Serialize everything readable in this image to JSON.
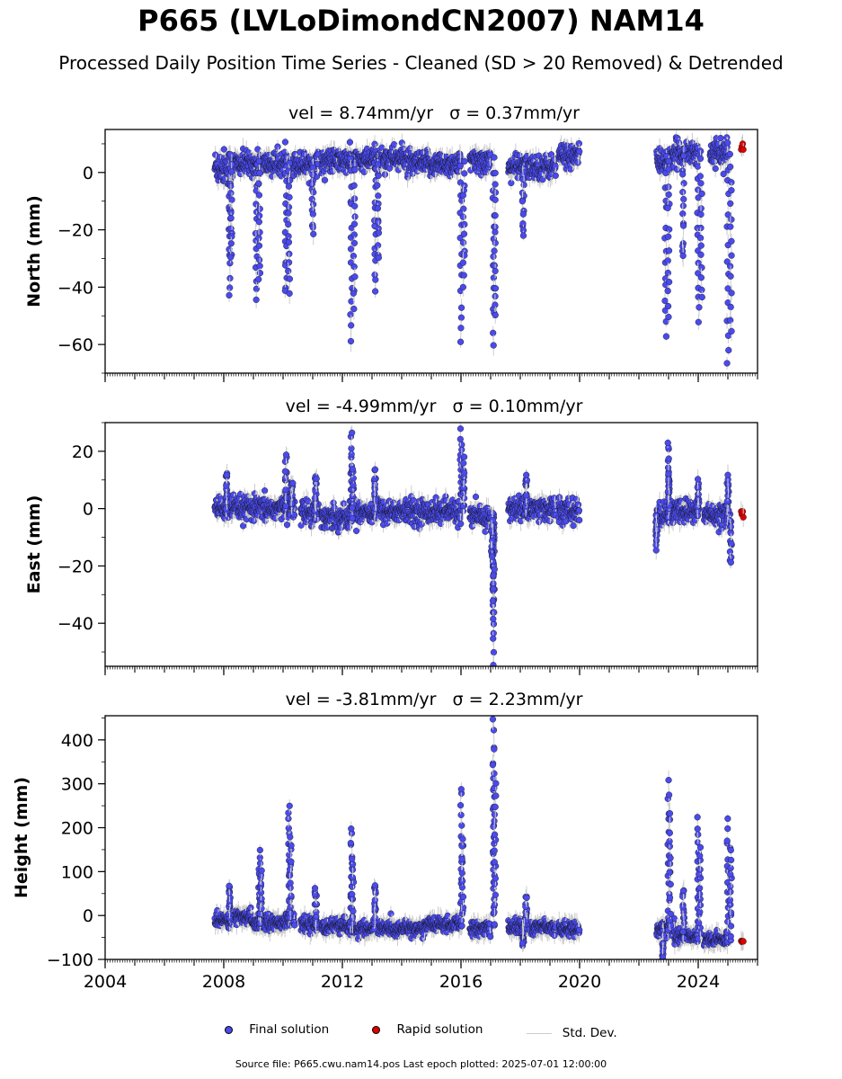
{
  "title": "P665 (LVLoDimondCN2007) NAM14",
  "subtitle": "Processed Daily Position Time Series - Cleaned (SD > 20 Removed) & Detrended",
  "legend": {
    "final": "Final solution",
    "rapid": "Rapid solution",
    "std": "Std. Dev."
  },
  "source": "Source file: P665.cwu.nam14.pos  Last epoch plotted: 2025-07-01 12:00:00",
  "colors": {
    "final": "#4a4aee",
    "rapid": "#dd0000",
    "std": "#cccccc"
  },
  "chart_data": [
    {
      "type": "scatter",
      "title": "vel = 8.74mm/yr   σ = 0.37mm/yr",
      "ylabel": "North (mm)",
      "xlim": [
        2004,
        2026
      ],
      "ylim": [
        -70,
        15
      ],
      "xticks": [
        2004,
        2008,
        2012,
        2016,
        2020,
        2024
      ],
      "yticks": [
        0,
        -20,
        -40,
        -60
      ],
      "series": [
        {
          "name": "Final solution",
          "clusters": [
            [
              2007.7,
              2008.3,
              2,
              3
            ],
            [
              2008.3,
              2009.0,
              3,
              2
            ],
            [
              2009.0,
              2010.1,
              3,
              2
            ],
            [
              2010.1,
              2010.6,
              3,
              2
            ],
            [
              2010.6,
              2011.2,
              3,
              2
            ],
            [
              2011.3,
              2013.0,
              4,
              2
            ],
            [
              2013.0,
              2014.2,
              5,
              2
            ],
            [
              2014.2,
              2016.0,
              3,
              2
            ],
            [
              2016.3,
              2017.0,
              4,
              2
            ],
            [
              2017.6,
              2019.2,
              2,
              2
            ],
            [
              2019.3,
              2020.0,
              6,
              2
            ],
            [
              2022.6,
              2023.2,
              4,
              2
            ],
            [
              2023.2,
              2024.0,
              7,
              2
            ],
            [
              2024.4,
              2025.0,
              7,
              2
            ]
          ],
          "spikes": [
            [
              2008.2,
              -42,
              0
            ],
            [
              2008.25,
              -30,
              0
            ],
            [
              2009.1,
              -44,
              0
            ],
            [
              2009.2,
              -38,
              0
            ],
            [
              2010.1,
              -44,
              0
            ],
            [
              2010.2,
              -40,
              0
            ],
            [
              2011.0,
              -22,
              0
            ],
            [
              2012.3,
              -58,
              0
            ],
            [
              2012.4,
              -48,
              0
            ],
            [
              2013.1,
              -41,
              0
            ],
            [
              2013.2,
              -30,
              0
            ],
            [
              2016.0,
              -59,
              0
            ],
            [
              2016.1,
              -39,
              0
            ],
            [
              2017.1,
              -60,
              0
            ],
            [
              2017.15,
              -50,
              0
            ],
            [
              2018.1,
              -22,
              0
            ],
            [
              2022.9,
              -58,
              0
            ],
            [
              2023.0,
              -50,
              0
            ],
            [
              2023.5,
              -30,
              0
            ],
            [
              2024.0,
              -53,
              0
            ],
            [
              2024.1,
              -44,
              0
            ],
            [
              2025.0,
              -67,
              0
            ],
            [
              2025.1,
              -55,
              0
            ]
          ]
        },
        {
          "name": "Rapid solution",
          "x": [
            2025.45,
            2025.47,
            2025.5,
            2025.52
          ],
          "y": [
            8,
            9,
            10,
            8
          ]
        }
      ]
    },
    {
      "type": "scatter",
      "title": "vel = -4.99mm/yr   σ = 0.10mm/yr",
      "ylabel": "East (mm)",
      "xlim": [
        2004,
        2026
      ],
      "ylim": [
        -55,
        30
      ],
      "xticks": [
        2004,
        2008,
        2012,
        2016,
        2020,
        2024
      ],
      "yticks": [
        20,
        0,
        -20,
        -40
      ],
      "series": [
        {
          "name": "Final solution",
          "clusters": [
            [
              2007.7,
              2008.3,
              0,
              2
            ],
            [
              2008.3,
              2009.0,
              0,
              2
            ],
            [
              2009.0,
              2010.0,
              0,
              2
            ],
            [
              2010.0,
              2010.4,
              1,
              2
            ],
            [
              2010.6,
              2011.2,
              -1,
              2
            ],
            [
              2011.3,
              2012.3,
              -3,
              2
            ],
            [
              2012.3,
              2013.0,
              -1,
              2
            ],
            [
              2013.0,
              2014.8,
              -1,
              2
            ],
            [
              2014.8,
              2016.0,
              -1,
              2
            ],
            [
              2016.3,
              2017.0,
              -3,
              2
            ],
            [
              2017.6,
              2019.2,
              0,
              2
            ],
            [
              2019.3,
              2020.0,
              -1,
              2
            ],
            [
              2022.6,
              2023.2,
              -2,
              2
            ],
            [
              2023.2,
              2024.0,
              -1,
              2
            ],
            [
              2024.2,
              2025.0,
              -2,
              2
            ]
          ],
          "spikes": [
            [
              2008.1,
              12,
              0
            ],
            [
              2010.1,
              19,
              0
            ],
            [
              2010.3,
              10,
              0
            ],
            [
              2011.1,
              12,
              0
            ],
            [
              2012.3,
              26,
              0
            ],
            [
              2012.35,
              15,
              0
            ],
            [
              2013.1,
              14,
              0
            ],
            [
              2016.0,
              27,
              0
            ],
            [
              2016.1,
              17,
              0
            ],
            [
              2017.1,
              -31,
              0
            ],
            [
              2017.1,
              -40,
              0
            ],
            [
              2017.1,
              -54,
              0
            ],
            [
              2017.05,
              -18,
              0
            ],
            [
              2018.2,
              12,
              0
            ],
            [
              2022.6,
              -13,
              0
            ],
            [
              2023.0,
              23,
              0
            ],
            [
              2023.0,
              12,
              0
            ],
            [
              2024.0,
              9,
              0
            ],
            [
              2025.1,
              -19,
              0
            ],
            [
              2025.0,
              11,
              0
            ]
          ]
        },
        {
          "name": "Rapid solution",
          "x": [
            2025.45,
            2025.47,
            2025.5,
            2025.52
          ],
          "y": [
            -1,
            -2,
            -1,
            -3
          ]
        }
      ]
    },
    {
      "type": "scatter",
      "title": "vel = -3.81mm/yr   σ = 2.23mm/yr",
      "ylabel": "Height (mm)",
      "xlim": [
        2004,
        2026
      ],
      "ylim": [
        -100,
        455
      ],
      "xticks": [
        2004,
        2008,
        2012,
        2016,
        2020,
        2024
      ],
      "yticks": [
        400,
        300,
        200,
        100,
        0,
        -100
      ],
      "series": [
        {
          "name": "Final solution",
          "clusters": [
            [
              2007.7,
              2008.3,
              -10,
              8
            ],
            [
              2008.3,
              2009.0,
              -5,
              8
            ],
            [
              2009.0,
              2010.0,
              -15,
              8
            ],
            [
              2010.0,
              2010.4,
              -10,
              8
            ],
            [
              2010.6,
              2011.2,
              -20,
              8
            ],
            [
              2011.3,
              2012.3,
              -25,
              8
            ],
            [
              2012.3,
              2013.0,
              -30,
              8
            ],
            [
              2013.0,
              2014.8,
              -30,
              8
            ],
            [
              2014.8,
              2016.0,
              -20,
              8
            ],
            [
              2016.3,
              2017.0,
              -30,
              8
            ],
            [
              2017.6,
              2019.2,
              -25,
              8
            ],
            [
              2019.3,
              2020.0,
              -30,
              8
            ],
            [
              2022.6,
              2023.2,
              -30,
              8
            ],
            [
              2023.2,
              2024.0,
              -45,
              8
            ],
            [
              2024.2,
              2025.0,
              -55,
              8
            ]
          ],
          "spikes": [
            [
              2008.2,
              70,
              0
            ],
            [
              2009.2,
              140,
              0
            ],
            [
              2009.25,
              100,
              0
            ],
            [
              2010.2,
              250,
              0
            ],
            [
              2010.25,
              190,
              0
            ],
            [
              2011.1,
              60,
              0
            ],
            [
              2012.3,
              205,
              0
            ],
            [
              2012.35,
              130,
              0
            ],
            [
              2013.1,
              75,
              0
            ],
            [
              2016.0,
              290,
              0
            ],
            [
              2016.05,
              180,
              0
            ],
            [
              2017.1,
              450,
              0
            ],
            [
              2017.1,
              380,
              0
            ],
            [
              2017.15,
              290,
              0
            ],
            [
              2018.2,
              45,
              0
            ],
            [
              2018.1,
              -65,
              0
            ],
            [
              2022.8,
              -100,
              0
            ],
            [
              2023.0,
              310,
              0
            ],
            [
              2023.05,
              230,
              0
            ],
            [
              2023.5,
              60,
              0
            ],
            [
              2024.0,
              220,
              0
            ],
            [
              2024.05,
              150,
              0
            ],
            [
              2025.0,
              210,
              0
            ],
            [
              2025.1,
              160,
              0
            ]
          ]
        },
        {
          "name": "Rapid solution",
          "x": [
            2025.45,
            2025.47,
            2025.5,
            2025.52
          ],
          "y": [
            -58,
            -60,
            -58,
            -59
          ]
        }
      ]
    }
  ]
}
